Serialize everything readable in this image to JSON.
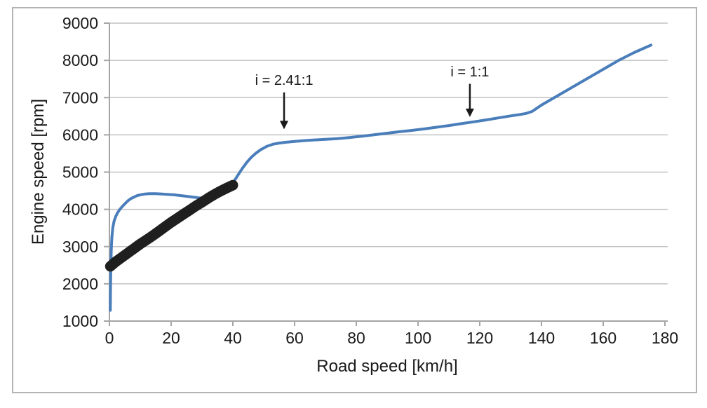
{
  "chart_data": {
    "type": "line",
    "title": "",
    "xlabel": "Road speed [km/h]",
    "ylabel": "Engine speed [rpm]",
    "xlim": [
      0,
      180
    ],
    "ylim": [
      1000,
      9000
    ],
    "x_ticks": [
      0,
      20,
      40,
      60,
      80,
      100,
      120,
      140,
      160,
      180
    ],
    "y_ticks": [
      1000,
      2000,
      3000,
      4000,
      5000,
      6000,
      7000,
      8000,
      9000
    ],
    "grid": "horizontal",
    "legend": "none",
    "colors": {
      "curve": "#4a7ebb",
      "trace": "#1f1f1f",
      "gridline": "#c2c2c2",
      "axis": "#a6a6a6",
      "text": "#1a1a1a",
      "border": "#b3b3b3",
      "background": "#ffffff"
    },
    "series": [
      {
        "name": "engine-speed-vs-road-speed-curve",
        "color": "#4a7ebb",
        "stroke_width": 4,
        "points": [
          [
            0.3,
            1290
          ],
          [
            0.35,
            1800
          ],
          [
            0.45,
            2400
          ],
          [
            0.6,
            2900
          ],
          [
            0.8,
            3250
          ],
          [
            1.1,
            3500
          ],
          [
            1.5,
            3680
          ],
          [
            2,
            3800
          ],
          [
            2.6,
            3900
          ],
          [
            3.3,
            3990
          ],
          [
            4,
            4060
          ],
          [
            5,
            4150
          ],
          [
            6,
            4230
          ],
          [
            7,
            4290
          ],
          [
            8,
            4330
          ],
          [
            9,
            4370
          ],
          [
            10,
            4390
          ],
          [
            11.5,
            4410
          ],
          [
            13,
            4420
          ],
          [
            15,
            4420
          ],
          [
            17,
            4410
          ],
          [
            19,
            4400
          ],
          [
            21,
            4390
          ],
          [
            23,
            4370
          ],
          [
            25,
            4350
          ],
          [
            27,
            4330
          ],
          [
            29,
            4310
          ],
          [
            31,
            4300
          ],
          [
            33,
            4310
          ],
          [
            35,
            4360
          ],
          [
            37,
            4440
          ],
          [
            38.5,
            4540
          ],
          [
            40,
            4700
          ],
          [
            41.5,
            4900
          ],
          [
            43,
            5090
          ],
          [
            44.5,
            5260
          ],
          [
            46,
            5400
          ],
          [
            47.5,
            5510
          ],
          [
            49,
            5600
          ],
          [
            51,
            5690
          ],
          [
            53,
            5750
          ],
          [
            55,
            5780
          ],
          [
            57,
            5800
          ],
          [
            60,
            5825
          ],
          [
            63,
            5845
          ],
          [
            66,
            5860
          ],
          [
            70,
            5880
          ],
          [
            74,
            5900
          ],
          [
            78,
            5930
          ],
          [
            82,
            5965
          ],
          [
            86,
            6005
          ],
          [
            90,
            6045
          ],
          [
            94,
            6085
          ],
          [
            98,
            6120
          ],
          [
            102,
            6160
          ],
          [
            106,
            6205
          ],
          [
            110,
            6250
          ],
          [
            114,
            6300
          ],
          [
            118,
            6350
          ],
          [
            122,
            6400
          ],
          [
            126,
            6455
          ],
          [
            130,
            6510
          ],
          [
            133,
            6545
          ],
          [
            135,
            6575
          ],
          [
            137,
            6630
          ],
          [
            140,
            6800
          ],
          [
            145,
            7040
          ],
          [
            150,
            7280
          ],
          [
            155,
            7520
          ],
          [
            160,
            7760
          ],
          [
            165,
            8000
          ],
          [
            170,
            8210
          ],
          [
            175.5,
            8410
          ]
        ]
      },
      {
        "name": "measured-first-gear-trace",
        "color": "#1f1f1f",
        "stroke_width": 15,
        "points": [
          [
            0.3,
            2470
          ],
          [
            2,
            2590
          ],
          [
            4,
            2710
          ],
          [
            6,
            2830
          ],
          [
            8,
            2950
          ],
          [
            10,
            3070
          ],
          [
            12,
            3180
          ],
          [
            14,
            3290
          ],
          [
            16,
            3410
          ],
          [
            18,
            3530
          ],
          [
            20,
            3650
          ],
          [
            22,
            3760
          ],
          [
            24,
            3870
          ],
          [
            26,
            3980
          ],
          [
            28,
            4090
          ],
          [
            30,
            4190
          ],
          [
            32,
            4300
          ],
          [
            34,
            4400
          ],
          [
            36,
            4490
          ],
          [
            38,
            4570
          ],
          [
            40,
            4650
          ]
        ]
      }
    ],
    "annotations": [
      {
        "label": "i = 2.41:1",
        "x": 56.6,
        "text_rpm": 7480,
        "arrow_from_rpm": 7140,
        "arrow_to_rpm": 6150
      },
      {
        "label": "i = 1:1",
        "x": 116.8,
        "text_rpm": 7700,
        "arrow_from_rpm": 7370,
        "arrow_to_rpm": 6480
      }
    ]
  }
}
